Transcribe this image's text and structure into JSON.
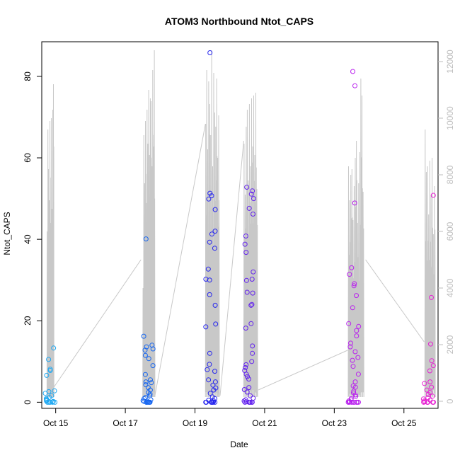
{
  "chart_data": {
    "type": "scatter",
    "title": "ATOM3 Northbound Ntot_CAPS",
    "xlabel": "Date",
    "ylabel": "Ntot_CAPS",
    "x_domain_days": [
      14.6,
      25.98
    ],
    "ylim": [
      -1.5,
      88.5
    ],
    "y2lim": [
      -250,
      12700
    ],
    "x_ticks": [
      {
        "label": "Oct 15",
        "day": 15
      },
      {
        "label": "Oct 17",
        "day": 17
      },
      {
        "label": "Oct 19",
        "day": 19
      },
      {
        "label": "Oct 21",
        "day": 21
      },
      {
        "label": "Oct 23",
        "day": 23
      },
      {
        "label": "Oct 25",
        "day": 25
      }
    ],
    "y_ticks": [
      0,
      20,
      40,
      60,
      80
    ],
    "y2_ticks": [
      0,
      2000,
      4000,
      6000,
      8000,
      10000,
      12000
    ],
    "colors": {
      "secondary_line": "#c8c8c8",
      "right_axis": "#bdbdbd",
      "color_scale": [
        "#00a6ff",
        "#0044ff",
        "#0000ff",
        "#6a00ff",
        "#c400ff",
        "#ff00d0"
      ]
    },
    "bursts": [
      {
        "day": 14.85,
        "color": "#1ea8f2",
        "points": [
          13.3,
          10.5,
          8.1,
          7.8,
          6.6,
          2.8,
          2.6,
          2.2,
          1.6,
          1.2,
          0.9,
          0.7,
          0.5,
          0.3,
          0.2,
          0.1,
          0.0,
          0.0,
          0.0,
          0.0,
          0.0
        ]
      },
      {
        "day": 17.65,
        "color": "#1565f0",
        "points": [
          40.1,
          16.2,
          14.0,
          13.6,
          13.1,
          12.8,
          11.5,
          10.7,
          9.0,
          6.8,
          5.5,
          5.0,
          4.8,
          4.3,
          3.6,
          3.0,
          2.4,
          2.0,
          1.6,
          1.2,
          0.9,
          0.6,
          0.4,
          0.2,
          0.1,
          0.0,
          0.0,
          0.0,
          0.0,
          0.0,
          0.0
        ]
      },
      {
        "day": 19.45,
        "color": "#2626ee",
        "points": [
          85.8,
          51.3,
          50.7,
          49.9,
          47.3,
          42.0,
          41.3,
          39.3,
          37.8,
          32.7,
          30.2,
          30.0,
          26.4,
          23.8,
          19.2,
          18.5,
          12.0,
          9.3,
          8.0,
          7.6,
          5.5,
          5.0,
          4.2,
          3.5,
          3.0,
          2.2,
          1.3,
          0.9,
          0.5,
          0.3,
          0.1,
          0.0,
          0.0,
          0.0,
          0.0,
          0.0,
          0.0,
          0.0
        ]
      },
      {
        "day": 20.55,
        "color": "#6322ee",
        "points": [
          52.8,
          51.9,
          51.1,
          50.0,
          47.6,
          46.2,
          40.8,
          38.8,
          36.8,
          32.0,
          30.2,
          29.9,
          27.0,
          26.8,
          24.0,
          23.8,
          19.3,
          18.2,
          13.8,
          12.0,
          10.0,
          9.2,
          8.5,
          7.8,
          6.9,
          6.3,
          5.7,
          3.6,
          3.1,
          2.5,
          1.6,
          1.0,
          0.6,
          0.3,
          0.1,
          0.0,
          0.0,
          0.0,
          0.0,
          0.0,
          0.0
        ]
      },
      {
        "day": 23.55,
        "color": "#b922ee",
        "points": [
          81.2,
          77.7,
          48.9,
          33.0,
          31.4,
          29.1,
          28.6,
          26.2,
          23.2,
          19.3,
          18.6,
          17.6,
          16.3,
          14.5,
          13.6,
          12.4,
          11.0,
          10.3,
          8.8,
          6.9,
          5.0,
          4.0,
          3.7,
          2.7,
          2.3,
          1.8,
          1.4,
          0.9,
          0.6,
          0.3,
          0.1,
          0.0,
          0.0,
          0.0,
          0.0,
          0.0,
          0.0,
          0.0,
          0.0
        ]
      },
      {
        "day": 25.7,
        "color": "#e622d2",
        "points": [
          50.8,
          25.7,
          14.3,
          10.2,
          9.0,
          7.7,
          5.0,
          4.6,
          3.7,
          3.0,
          2.4,
          1.9,
          1.5,
          1.1,
          0.8,
          0.5,
          0.3,
          0.1,
          0.0,
          0.0,
          0.0,
          0.0,
          0.0,
          0.0
        ]
      }
    ],
    "secondary_series": {
      "axis": "right",
      "line_color": "#c8c8c8",
      "segments": [
        {
          "day_start": 14.75,
          "day_end": 14.95,
          "peaks": [
            6000,
            9600,
            8200,
            7100,
            9900,
            6300,
            10000,
            6800,
            10300,
            11200
          ]
        },
        {
          "day_start": 17.5,
          "day_end": 17.85,
          "peaks": [
            4000,
            9400,
            7700,
            9900,
            7000,
            10300,
            9100,
            11000,
            8700,
            10700,
            10600,
            8300,
            11700,
            9000,
            12400
          ]
        },
        {
          "day_start": 19.3,
          "day_end": 19.7,
          "peaks": [
            9800,
            11700,
            8900,
            11300,
            10500,
            9400,
            12400,
            8300,
            11600,
            10200,
            9700,
            11400,
            8600,
            10100
          ]
        },
        {
          "day_start": 20.4,
          "day_end": 20.8,
          "peaks": [
            9100,
            7300,
            9700,
            10300,
            7800,
            10500,
            8300,
            10700,
            9000,
            10800,
            8700,
            10900,
            7500
          ]
        },
        {
          "day_start": 23.4,
          "day_end": 23.85,
          "peaks": [
            8300,
            7100,
            8000,
            8200,
            6400,
            7600,
            8600,
            9200,
            6300,
            7700,
            8800,
            11400,
            10800,
            7400
          ]
        },
        {
          "day_start": 25.6,
          "day_end": 25.9,
          "peaks": [
            9600,
            8100,
            8300,
            6600,
            8500,
            7300,
            8600,
            5900,
            7600
          ]
        }
      ],
      "connectors": [
        {
          "from_day": 14.95,
          "from": 500,
          "to_day": 17.45,
          "to": 5000
        },
        {
          "from_day": 17.85,
          "from": 200,
          "to_day": 19.3,
          "to": 9800
        },
        {
          "from_day": 19.72,
          "from": 200,
          "to_day": 20.4,
          "to": 9200
        },
        {
          "from_day": 20.82,
          "from": 400,
          "to_day": 23.38,
          "to": 1800
        },
        {
          "from_day": 23.9,
          "from": 5000,
          "to_day": 25.58,
          "to": 2100
        }
      ]
    }
  }
}
